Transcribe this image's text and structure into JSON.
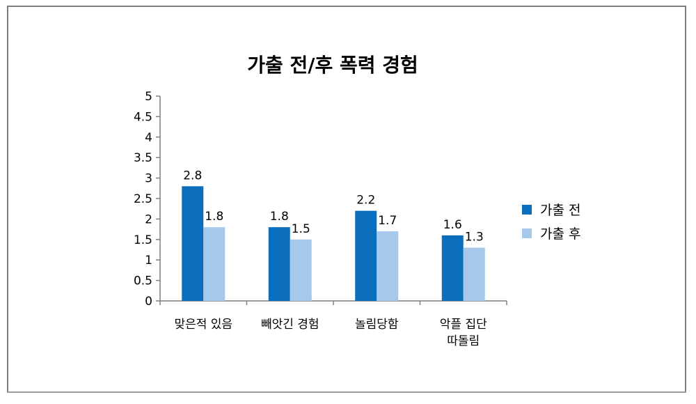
{
  "chart_data": {
    "type": "bar",
    "title": "가출 전/후 폭력 경험",
    "categories": [
      "맞은적 있음",
      "빼앗긴 경험",
      "놀림당함",
      "악플 집단\n따돌림"
    ],
    "series": [
      {
        "name": "가출 전",
        "values": [
          2.8,
          1.8,
          2.2,
          1.6
        ],
        "data_labels": [
          "2.8",
          "1.8",
          "2.2",
          "1.6"
        ],
        "color": "#0a6ebd"
      },
      {
        "name": "가출 후",
        "values": [
          1.8,
          1.5,
          1.7,
          1.3
        ],
        "data_labels": [
          "1.8",
          "1.5",
          "1.7",
          "1.3"
        ],
        "color": "#a6c8ea"
      }
    ],
    "ylim": [
      0,
      5
    ],
    "yticks": [
      "0",
      "0.5",
      "1",
      "1.5",
      "2",
      "2.5",
      "3",
      "3.5",
      "4",
      "4.5",
      "5"
    ],
    "xlabel": "",
    "ylabel": "",
    "grid": false,
    "legend_position": "right"
  }
}
